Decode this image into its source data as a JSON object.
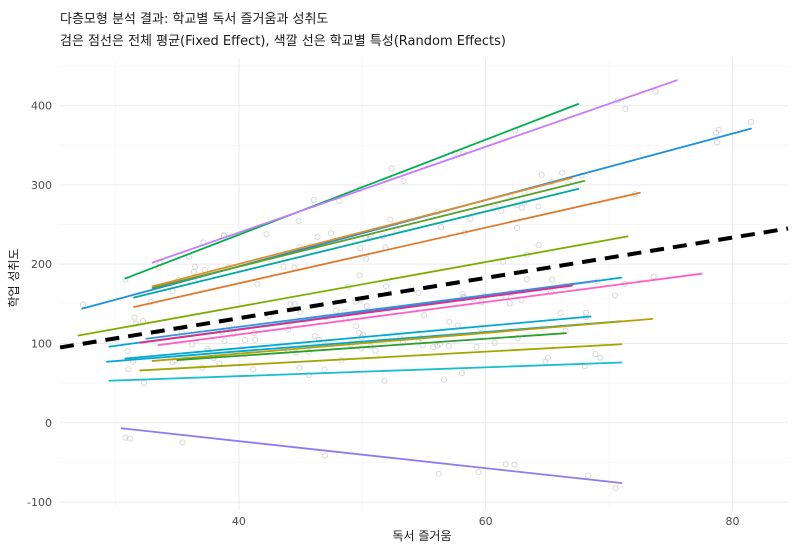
{
  "chart_data": {
    "type": "line",
    "title": "다층모형 분석 결과: 학교별 독서 즐거움과 성취도",
    "subtitle": "검은 점선은 전체 평균(Fixed Effect), 색깔 선은 학교별 특성(Random Effects)",
    "xlabel": "독서 즐거움",
    "ylabel": "학업 성취도",
    "xlim": [
      25.5,
      84.5
    ],
    "ylim": [
      -110,
      460
    ],
    "x_ticks": [
      40,
      60,
      80
    ],
    "y_ticks": [
      -100,
      0,
      100,
      200,
      300,
      400
    ],
    "grid": true,
    "fixed_effect": {
      "x": [
        25.5,
        84.5
      ],
      "y": [
        95,
        245
      ],
      "color": "#000000",
      "dash": true
    },
    "series": [
      {
        "color": "#00b050",
        "x": [
          30.8,
          67.5
        ],
        "y": [
          182,
          402
        ]
      },
      {
        "color": "#c77cff",
        "x": [
          33.0,
          75.5
        ],
        "y": [
          202,
          432
        ]
      },
      {
        "color": "#1f8fdf",
        "x": [
          27.3,
          81.5
        ],
        "y": [
          144,
          371
        ]
      },
      {
        "color": "#e08e2b",
        "x": [
          33.0,
          67.0
        ],
        "y": [
          172,
          309
        ]
      },
      {
        "color": "#5aa02c",
        "x": [
          33.0,
          68.0
        ],
        "y": [
          170,
          305
        ]
      },
      {
        "color": "#00a9a4",
        "x": [
          31.5,
          67.5
        ],
        "y": [
          158,
          295
        ]
      },
      {
        "color": "#e07a2a",
        "x": [
          31.5,
          72.5
        ],
        "y": [
          146,
          290
        ]
      },
      {
        "color": "#7cae00",
        "x": [
          27.0,
          71.5
        ],
        "y": [
          110,
          235
        ]
      },
      {
        "color": "#00a9d4",
        "x": [
          29.5,
          71.0
        ],
        "y": [
          96,
          183
        ]
      },
      {
        "color": "#3b8fe0",
        "x": [
          32.5,
          69.0
        ],
        "y": [
          106,
          179
        ]
      },
      {
        "color": "#ff61c3",
        "x": [
          33.5,
          77.5
        ],
        "y": [
          98,
          188
        ]
      },
      {
        "color": "#e7298a",
        "x": [
          32.0,
          67.0
        ],
        "y": [
          101,
          173
        ]
      },
      {
        "color": "#00a9d4",
        "x": [
          30.8,
          68.5
        ],
        "y": [
          81,
          134
        ]
      },
      {
        "color": "#00a6d6",
        "x": [
          29.3,
          71.0
        ],
        "y": [
          77,
          128
        ]
      },
      {
        "color": "#b79f00",
        "x": [
          33.0,
          73.5
        ],
        "y": [
          78,
          131
        ]
      },
      {
        "color": "#2ca02c",
        "x": [
          35.0,
          66.5
        ],
        "y": [
          79,
          113
        ]
      },
      {
        "color": "#a3a500",
        "x": [
          32.0,
          71.0
        ],
        "y": [
          66,
          99
        ]
      },
      {
        "color": "#17becf",
        "x": [
          29.5,
          71.0
        ],
        "y": [
          53,
          76
        ]
      },
      {
        "color": "#8c7cf2",
        "x": [
          30.5,
          71.0
        ],
        "y": [
          -7,
          -76
        ]
      }
    ],
    "points": {
      "color": "#c0c0c0",
      "n": 200,
      "alpha": 0.6
    }
  }
}
